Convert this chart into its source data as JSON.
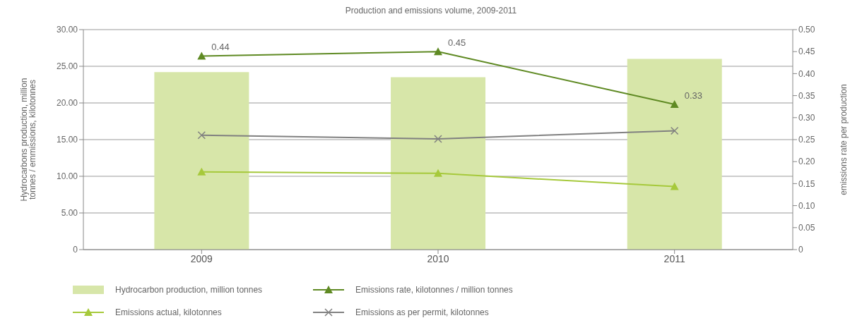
{
  "chart_data": {
    "type": "bar",
    "title": "Production and emissions volume, 2009-2011",
    "categories": [
      "2009",
      "2010",
      "2011"
    ],
    "ylabel": "Hydrocarbons production, million tonnes / emmissions, kilotonnes",
    "y2label": "emissions rate per production",
    "series": [
      {
        "name": "Hydrocarbon production, million tonnes",
        "color": "#d7e6a9",
        "values": [
          24.2,
          23.5,
          26.0
        ]
      },
      {
        "name": "Emissions rate, kilotonnes / million tonnes",
        "type": "line",
        "axis": "y2",
        "color": "#5f8a23",
        "marker": "triangle",
        "values": [
          0.44,
          0.45,
          0.33
        ],
        "value_labels": [
          "0.44",
          "0.45",
          "0.33"
        ]
      },
      {
        "name": "Emissions actual, kilotonnes",
        "type": "line",
        "color": "#a6c93b",
        "marker": "triangle",
        "values": [
          10.6,
          10.4,
          8.6
        ]
      },
      {
        "name": "Emissions as per permit, kilotonnes",
        "type": "line",
        "color": "#808080",
        "marker": "cross",
        "values": [
          15.6,
          15.1,
          16.2
        ]
      }
    ],
    "ylim": [
      0,
      30
    ],
    "yticks": [
      {
        "value": 0,
        "label": "0"
      },
      {
        "value": 5,
        "label": "5.00"
      },
      {
        "value": 10,
        "label": "10.00"
      },
      {
        "value": 15,
        "label": "15.00"
      },
      {
        "value": 20,
        "label": "20.00"
      },
      {
        "value": 25,
        "label": "25.00"
      },
      {
        "value": 30,
        "label": "30.00"
      }
    ],
    "y2lim": [
      0,
      0.5
    ],
    "y2ticks": [
      {
        "value": 0,
        "label": "0"
      },
      {
        "value": 0.05,
        "label": "0.05"
      },
      {
        "value": 0.1,
        "label": "0.10"
      },
      {
        "value": 0.15,
        "label": "0.15"
      },
      {
        "value": 0.2,
        "label": "0.20"
      },
      {
        "value": 0.25,
        "label": "0.25"
      },
      {
        "value": 0.3,
        "label": "0.30"
      },
      {
        "value": 0.35,
        "label": "0.35"
      },
      {
        "value": 0.4,
        "label": "0.40"
      },
      {
        "value": 0.45,
        "label": "0.45"
      },
      {
        "value": 0.5,
        "label": "0.50"
      }
    ],
    "grid": "y",
    "legend": "bottom"
  }
}
